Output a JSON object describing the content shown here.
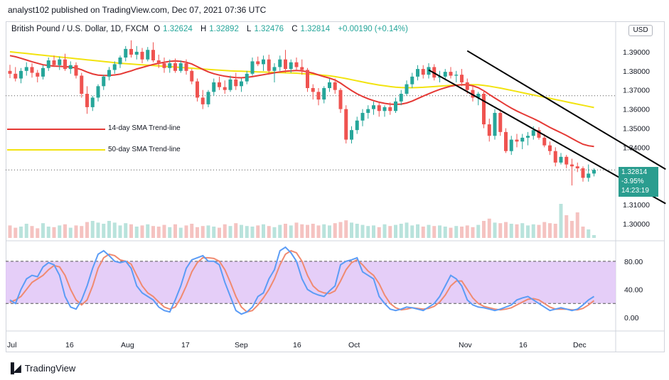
{
  "publisher": "analyst102 published on TradingView.com, Dec 07, 2021 07:36 UTC",
  "legend": {
    "symbol": "British Pound / U.S. Dollar, 1D, FXCM",
    "o_label": "O",
    "o": "1.32624",
    "h_label": "H",
    "h": "1.32892",
    "l_label": "L",
    "l": "1.32476",
    "c_label": "C",
    "c": "1.32814",
    "change": "+0.00190 (+0.14%)"
  },
  "currency_button": "USD",
  "annotations": {
    "sma14": "14-day SMA Trend-line",
    "sma50": "50-day SMA Trend-line"
  },
  "price_box": {
    "price": "1.32814",
    "pct": "-3.95%",
    "countdown": "14:23:19"
  },
  "branding": "TradingView",
  "colors": {
    "up": "#26a69a",
    "down": "#ef5350",
    "sma14": "#e53935",
    "sma50": "#f2e30f",
    "channel": "#000000",
    "stoch_k": "#5b9cf6",
    "stoch_d": "#f08a70",
    "stoch_band": "#e1c6f7"
  },
  "chart_data": {
    "type": "candlestick",
    "price_axis": {
      "ticks": [
        "1.39000",
        "1.38000",
        "1.37000",
        "1.36000",
        "1.35000",
        "1.34000",
        "1.31000",
        "1.30000"
      ],
      "ylim": [
        1.2955,
        1.4015
      ]
    },
    "time_axis": {
      "labels": [
        "Jul",
        "16",
        "Aug",
        "17",
        "Sep",
        "16",
        "Oct",
        "Nov",
        "16",
        "Dec"
      ]
    },
    "candles": [
      [
        1.38,
        1.3832,
        1.3762,
        1.3785
      ],
      [
        1.3785,
        1.382,
        1.3745,
        1.376
      ],
      [
        1.376,
        1.3815,
        1.3735,
        1.38
      ],
      [
        1.38,
        1.3845,
        1.3775,
        1.382
      ],
      [
        1.382,
        1.384,
        1.3765,
        1.379
      ],
      [
        1.379,
        1.3805,
        1.374,
        1.377
      ],
      [
        1.377,
        1.383,
        1.3755,
        1.3815
      ],
      [
        1.3815,
        1.387,
        1.38,
        1.3855
      ],
      [
        1.3855,
        1.388,
        1.382,
        1.383
      ],
      [
        1.383,
        1.3875,
        1.3805,
        1.386
      ],
      [
        1.386,
        1.389,
        1.38,
        1.381
      ],
      [
        1.381,
        1.385,
        1.3785,
        1.383
      ],
      [
        1.383,
        1.3845,
        1.376,
        1.3775
      ],
      [
        1.3775,
        1.379,
        1.366,
        1.368
      ],
      [
        1.368,
        1.372,
        1.3575,
        1.361
      ],
      [
        1.361,
        1.367,
        1.359,
        1.366
      ],
      [
        1.366,
        1.373,
        1.364,
        1.372
      ],
      [
        1.372,
        1.378,
        1.37,
        1.377
      ],
      [
        1.377,
        1.382,
        1.375,
        1.3805
      ],
      [
        1.3805,
        1.385,
        1.3785,
        1.3835
      ],
      [
        1.3835,
        1.388,
        1.3815,
        1.387
      ],
      [
        1.387,
        1.393,
        1.385,
        1.3915
      ],
      [
        1.3915,
        1.396,
        1.387,
        1.3885
      ],
      [
        1.3885,
        1.393,
        1.386,
        1.39
      ],
      [
        1.39,
        1.392,
        1.384,
        1.386
      ],
      [
        1.386,
        1.3925,
        1.385,
        1.391
      ],
      [
        1.391,
        1.395,
        1.3845,
        1.3855
      ],
      [
        1.3855,
        1.3885,
        1.3815,
        1.384
      ],
      [
        1.384,
        1.387,
        1.379,
        1.3815
      ],
      [
        1.3815,
        1.386,
        1.379,
        1.384
      ],
      [
        1.384,
        1.3865,
        1.379,
        1.38
      ],
      [
        1.38,
        1.3855,
        1.379,
        1.384
      ],
      [
        1.384,
        1.386,
        1.378,
        1.38
      ],
      [
        1.38,
        1.381,
        1.373,
        1.3745
      ],
      [
        1.3745,
        1.376,
        1.364,
        1.366
      ],
      [
        1.366,
        1.37,
        1.36,
        1.3625
      ],
      [
        1.3625,
        1.37,
        1.361,
        1.369
      ],
      [
        1.369,
        1.376,
        1.367,
        1.374
      ],
      [
        1.374,
        1.377,
        1.37,
        1.3715
      ],
      [
        1.3715,
        1.375,
        1.368,
        1.37
      ],
      [
        1.37,
        1.3775,
        1.369,
        1.3755
      ],
      [
        1.3755,
        1.379,
        1.37,
        1.372
      ],
      [
        1.372,
        1.376,
        1.369,
        1.3745
      ],
      [
        1.3745,
        1.38,
        1.373,
        1.3785
      ],
      [
        1.3785,
        1.387,
        1.3775,
        1.385
      ],
      [
        1.385,
        1.3875,
        1.3825,
        1.3835
      ],
      [
        1.3835,
        1.388,
        1.38,
        1.386
      ],
      [
        1.386,
        1.3885,
        1.378,
        1.38
      ],
      [
        1.38,
        1.384,
        1.374,
        1.382
      ],
      [
        1.382,
        1.388,
        1.38,
        1.386
      ],
      [
        1.386,
        1.391,
        1.379,
        1.381
      ],
      [
        1.381,
        1.386,
        1.379,
        1.3845
      ],
      [
        1.3845,
        1.387,
        1.38,
        1.382
      ],
      [
        1.382,
        1.386,
        1.378,
        1.3805
      ],
      [
        1.3805,
        1.3815,
        1.369,
        1.371
      ],
      [
        1.371,
        1.373,
        1.365,
        1.369
      ],
      [
        1.369,
        1.371,
        1.362,
        1.365
      ],
      [
        1.365,
        1.372,
        1.363,
        1.371
      ],
      [
        1.371,
        1.376,
        1.369,
        1.374
      ],
      [
        1.374,
        1.376,
        1.368,
        1.37
      ],
      [
        1.37,
        1.371,
        1.358,
        1.36
      ],
      [
        1.36,
        1.362,
        1.342,
        1.344
      ],
      [
        1.344,
        1.351,
        1.342,
        1.349
      ],
      [
        1.349,
        1.356,
        1.347,
        1.354
      ],
      [
        1.354,
        1.36,
        1.351,
        1.358
      ],
      [
        1.358,
        1.362,
        1.355,
        1.36
      ],
      [
        1.36,
        1.364,
        1.357,
        1.362
      ],
      [
        1.362,
        1.364,
        1.356,
        1.359
      ],
      [
        1.359,
        1.362,
        1.356,
        1.361
      ],
      [
        1.361,
        1.3635,
        1.357,
        1.359
      ],
      [
        1.359,
        1.366,
        1.358,
        1.364
      ],
      [
        1.364,
        1.37,
        1.362,
        1.368
      ],
      [
        1.368,
        1.375,
        1.367,
        1.373
      ],
      [
        1.373,
        1.379,
        1.371,
        1.377
      ],
      [
        1.377,
        1.383,
        1.375,
        1.381
      ],
      [
        1.381,
        1.383,
        1.376,
        1.378
      ],
      [
        1.378,
        1.384,
        1.376,
        1.382
      ],
      [
        1.382,
        1.3835,
        1.375,
        1.3765
      ],
      [
        1.3765,
        1.38,
        1.374,
        1.377
      ],
      [
        1.377,
        1.381,
        1.375,
        1.3795
      ],
      [
        1.3795,
        1.382,
        1.376,
        1.3775
      ],
      [
        1.3775,
        1.38,
        1.374,
        1.378
      ],
      [
        1.378,
        1.381,
        1.372,
        1.374
      ],
      [
        1.374,
        1.376,
        1.368,
        1.37
      ],
      [
        1.37,
        1.372,
        1.364,
        1.366
      ],
      [
        1.366,
        1.369,
        1.362,
        1.368
      ],
      [
        1.368,
        1.37,
        1.35,
        1.352
      ],
      [
        1.352,
        1.355,
        1.343,
        1.346
      ],
      [
        1.346,
        1.36,
        1.344,
        1.358
      ],
      [
        1.358,
        1.36,
        1.346,
        1.348
      ],
      [
        1.348,
        1.35,
        1.337,
        1.338
      ],
      [
        1.338,
        1.346,
        1.336,
        1.344
      ],
      [
        1.344,
        1.347,
        1.34,
        1.343
      ],
      [
        1.343,
        1.347,
        1.339,
        1.345
      ],
      [
        1.345,
        1.348,
        1.341,
        1.346
      ],
      [
        1.346,
        1.351,
        1.344,
        1.349
      ],
      [
        1.349,
        1.3505,
        1.344,
        1.345
      ],
      [
        1.345,
        1.347,
        1.34,
        1.341
      ],
      [
        1.341,
        1.343,
        1.336,
        1.338
      ],
      [
        1.338,
        1.34,
        1.33,
        1.332
      ],
      [
        1.332,
        1.337,
        1.331,
        1.335
      ],
      [
        1.335,
        1.336,
        1.329,
        1.331
      ],
      [
        1.331,
        1.334,
        1.32,
        1.33
      ],
      [
        1.33,
        1.332,
        1.327,
        1.329
      ],
      [
        1.329,
        1.33,
        1.322,
        1.324
      ],
      [
        1.324,
        1.331,
        1.322,
        1.3262
      ],
      [
        1.32624,
        1.32892,
        1.32476,
        1.32814
      ]
    ],
    "volume": [
      0.22,
      0.18,
      0.2,
      0.25,
      0.21,
      0.17,
      0.26,
      0.2,
      0.19,
      0.22,
      0.24,
      0.18,
      0.22,
      0.21,
      0.28,
      0.3,
      0.27,
      0.25,
      0.3,
      0.27,
      0.22,
      0.26,
      0.24,
      0.2,
      0.22,
      0.24,
      0.21,
      0.2,
      0.23,
      0.19,
      0.24,
      0.18,
      0.22,
      0.25,
      0.19,
      0.21,
      0.22,
      0.2,
      0.18,
      0.24,
      0.21,
      0.26,
      0.23,
      0.21,
      0.2,
      0.22,
      0.24,
      0.21,
      0.19,
      0.23,
      0.25,
      0.22,
      0.27,
      0.24,
      0.23,
      0.25,
      0.22,
      0.24,
      0.22,
      0.26,
      0.28,
      0.31,
      0.27,
      0.25,
      0.23,
      0.21,
      0.22,
      0.19,
      0.24,
      0.21,
      0.23,
      0.25,
      0.27,
      0.22,
      0.24,
      0.2,
      0.23,
      0.21,
      0.22,
      0.2,
      0.18,
      0.21,
      0.2,
      0.22,
      0.19,
      0.23,
      0.3,
      0.34,
      0.27,
      0.26,
      0.28,
      0.25,
      0.24,
      0.26,
      0.22,
      0.24,
      0.23,
      0.28,
      0.26,
      0.25,
      0.6,
      0.4,
      0.3,
      0.45,
      0.2,
      0.15,
      0.05
    ],
    "sma14": [
      1.388,
      1.3874,
      1.3866,
      1.3857,
      1.3848,
      1.384,
      1.3832,
      1.3828,
      1.3825,
      1.3824,
      1.3822,
      1.382,
      1.3815,
      1.3806,
      1.3794,
      1.3784,
      1.3778,
      1.3776,
      1.3776,
      1.3779,
      1.3783,
      1.3792,
      1.38,
      1.381,
      1.3818,
      1.3826,
      1.3834,
      1.384,
      1.3845,
      1.385,
      1.3852,
      1.385,
      1.3845,
      1.3836,
      1.3822,
      1.3808,
      1.3795,
      1.3785,
      1.3778,
      1.3772,
      1.3768,
      1.3765,
      1.3764,
      1.3766,
      1.377,
      1.3775,
      1.378,
      1.3785,
      1.379,
      1.3795,
      1.3798,
      1.38,
      1.3802,
      1.38,
      1.3795,
      1.3788,
      1.3779,
      1.377,
      1.3762,
      1.3752,
      1.3736,
      1.3716,
      1.3697,
      1.368,
      1.3666,
      1.3654,
      1.3644,
      1.3636,
      1.363,
      1.3626,
      1.3625,
      1.3626,
      1.3632,
      1.3642,
      1.3655,
      1.3668,
      1.368,
      1.3692,
      1.3703,
      1.3712,
      1.372,
      1.3725,
      1.3728,
      1.3727,
      1.3722,
      1.3712,
      1.3696,
      1.3676,
      1.3658,
      1.364,
      1.3622,
      1.3605,
      1.359,
      1.3576,
      1.3563,
      1.355,
      1.3536,
      1.352,
      1.3504,
      1.349,
      1.3476,
      1.3462,
      1.3446,
      1.343,
      1.3416,
      1.3408,
      1.3404
    ],
    "sma50": [
      1.39,
      1.3897,
      1.3894,
      1.3891,
      1.3888,
      1.3885,
      1.3882,
      1.3879,
      1.3876,
      1.3873,
      1.387,
      1.3867,
      1.3864,
      1.3861,
      1.3858,
      1.3855,
      1.3852,
      1.3849,
      1.3846,
      1.3843,
      1.384,
      1.3838,
      1.3836,
      1.3834,
      1.3832,
      1.383,
      1.3828,
      1.3826,
      1.3824,
      1.3822,
      1.382,
      1.3818,
      1.3816,
      1.3814,
      1.3812,
      1.381,
      1.3808,
      1.3806,
      1.3804,
      1.3802,
      1.38,
      1.3799,
      1.3798,
      1.3797,
      1.3796,
      1.3795,
      1.3794,
      1.3793,
      1.3792,
      1.3791,
      1.379,
      1.3789,
      1.3788,
      1.3786,
      1.3784,
      1.3782,
      1.378,
      1.3777,
      1.3774,
      1.377,
      1.3765,
      1.376,
      1.3754,
      1.3748,
      1.3742,
      1.3736,
      1.3731,
      1.3726,
      1.3722,
      1.3718,
      1.3715,
      1.3713,
      1.3712,
      1.3712,
      1.3713,
      1.3714,
      1.3716,
      1.3718,
      1.372,
      1.3722,
      1.3724,
      1.3726,
      1.3727,
      1.3728,
      1.3728,
      1.3727,
      1.3724,
      1.372,
      1.3715,
      1.371,
      1.3704,
      1.3698,
      1.3692,
      1.3686,
      1.368,
      1.3674,
      1.3668,
      1.3662,
      1.3656,
      1.365,
      1.3644,
      1.3638,
      1.3632,
      1.3626,
      1.362,
      1.3614,
      1.3608
    ],
    "current_price": 1.32814,
    "dotted_reference": 1.367,
    "channel": {
      "upper": [
        [
          83,
          1.3905
        ],
        [
          119,
          1.3285
        ]
      ],
      "lower": [
        [
          76,
          1.3805
        ],
        [
          119,
          1.3105
        ]
      ]
    },
    "stochastic": {
      "ticks": [
        "80.00",
        "40.00",
        "0.00"
      ],
      "ylim": [
        -15,
        100
      ],
      "band": [
        20,
        80
      ],
      "k": [
        25,
        20,
        40,
        55,
        60,
        58,
        72,
        78,
        75,
        60,
        30,
        15,
        12,
        25,
        45,
        70,
        90,
        95,
        88,
        80,
        78,
        80,
        70,
        45,
        35,
        30,
        25,
        15,
        10,
        8,
        25,
        45,
        70,
        82,
        85,
        88,
        80,
        80,
        75,
        50,
        30,
        10,
        5,
        8,
        15,
        30,
        35,
        55,
        68,
        95,
        100,
        92,
        80,
        55,
        40,
        35,
        32,
        30,
        38,
        45,
        75,
        80,
        82,
        85,
        65,
        60,
        55,
        30,
        20,
        12,
        10,
        12,
        15,
        14,
        12,
        10,
        15,
        20,
        30,
        45,
        60,
        55,
        45,
        25,
        18,
        15,
        14,
        12,
        10,
        12,
        15,
        18,
        25,
        28,
        30,
        25,
        20,
        15,
        10,
        12,
        14,
        12,
        10,
        12,
        18,
        25,
        30
      ],
      "d": [
        22,
        25,
        30,
        40,
        50,
        55,
        60,
        68,
        74,
        72,
        60,
        40,
        25,
        18,
        25,
        45,
        70,
        85,
        90,
        88,
        82,
        80,
        76,
        60,
        45,
        35,
        30,
        22,
        15,
        12,
        15,
        28,
        45,
        65,
        78,
        85,
        85,
        84,
        80,
        68,
        50,
        30,
        15,
        8,
        10,
        18,
        28,
        40,
        55,
        75,
        90,
        95,
        92,
        80,
        60,
        45,
        38,
        35,
        34,
        38,
        52,
        68,
        78,
        82,
        75,
        66,
        60,
        48,
        32,
        20,
        14,
        11,
        12,
        14,
        13,
        12,
        13,
        16,
        22,
        32,
        45,
        52,
        52,
        40,
        28,
        20,
        16,
        14,
        12,
        11,
        12,
        14,
        18,
        22,
        26,
        27,
        25,
        20,
        15,
        12,
        12,
        12,
        11,
        11,
        13,
        18,
        24
      ]
    }
  }
}
